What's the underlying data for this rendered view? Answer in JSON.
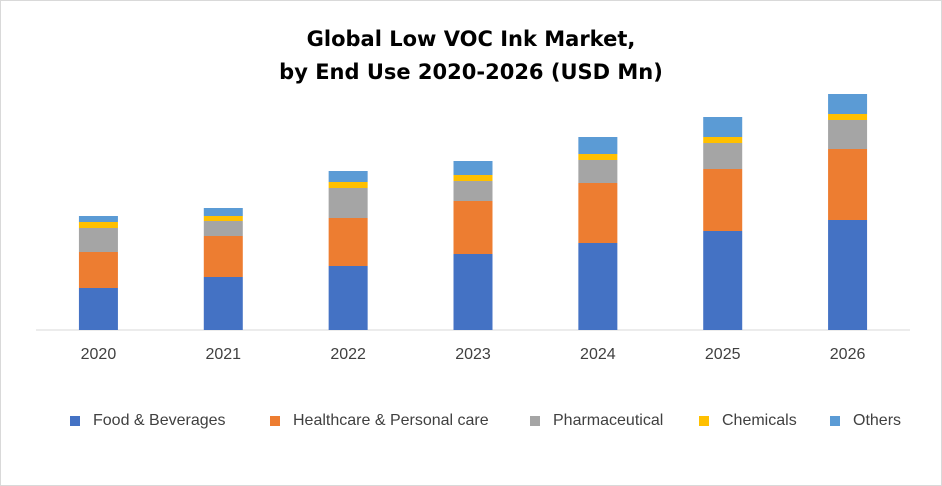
{
  "chart_data": {
    "type": "bar",
    "stacked": true,
    "title": "Global Low VOC Ink Market,",
    "subtitle": "by End Use 2020-2026 (USD Mn)",
    "categories": [
      "2020",
      "2021",
      "2022",
      "2023",
      "2024",
      "2025",
      "2026"
    ],
    "series": [
      {
        "name": "Food & Beverages",
        "color": "#4472C4",
        "values": [
          42,
          53,
          64,
          76,
          87,
          99,
          110
        ]
      },
      {
        "name": "Healthcare & Personal care",
        "color": "#ED7D31",
        "values": [
          36,
          41,
          48,
          53,
          60,
          62,
          71
        ]
      },
      {
        "name": "Pharmaceutical",
        "color": "#A5A5A5",
        "values": [
          24,
          15,
          30,
          20,
          23,
          26,
          29
        ]
      },
      {
        "name": "Chemicals",
        "color": "#FFC000",
        "values": [
          6,
          5,
          6,
          6,
          6,
          6,
          6
        ]
      },
      {
        "name": "Others",
        "color": "#5B9BD5",
        "values": [
          6,
          8,
          11,
          14,
          17,
          20,
          20
        ]
      }
    ],
    "ylim": [
      0,
      240
    ],
    "grid": false,
    "legend_position": "bottom"
  }
}
